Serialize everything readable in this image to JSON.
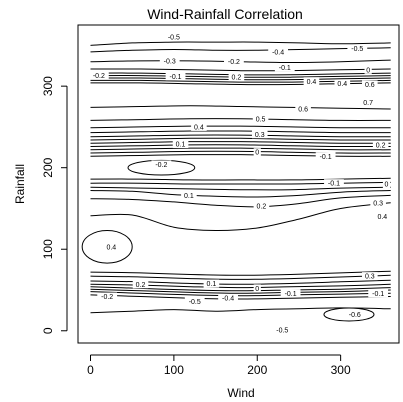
{
  "chart_data": {
    "type": "contour",
    "title": "Wind-Rainfall Correlation",
    "xlabel": "Wind",
    "ylabel": "Rainfall",
    "xlim": [
      -15,
      370
    ],
    "ylim": [
      -15,
      375
    ],
    "xticks": [
      0,
      100,
      200,
      300
    ],
    "yticks": [
      0,
      100,
      200,
      300
    ],
    "grid": false,
    "contours": [
      {
        "points": [
          [
            0,
            22
          ],
          [
            50,
            24
          ],
          [
            100,
            26
          ],
          [
            150,
            24
          ],
          [
            200,
            26
          ],
          [
            250,
            27
          ],
          [
            300,
            28
          ],
          [
            360,
            27
          ]
        ]
      },
      {
        "points": [
          [
            0,
            44
          ],
          [
            60,
            42
          ],
          [
            120,
            40
          ],
          [
            180,
            39
          ],
          [
            240,
            40
          ],
          [
            300,
            41
          ],
          [
            360,
            42
          ]
        ]
      },
      {
        "points": [
          [
            0,
            48
          ],
          [
            60,
            46
          ],
          [
            120,
            44
          ],
          [
            180,
            43
          ],
          [
            240,
            44
          ],
          [
            300,
            45
          ],
          [
            360,
            46
          ]
        ]
      },
      {
        "points": [
          [
            0,
            51
          ],
          [
            60,
            49
          ],
          [
            120,
            47
          ],
          [
            180,
            46
          ],
          [
            240,
            47
          ],
          [
            300,
            48
          ],
          [
            360,
            50
          ]
        ]
      },
      {
        "points": [
          [
            0,
            54
          ],
          [
            60,
            52
          ],
          [
            120,
            50
          ],
          [
            180,
            49
          ],
          [
            240,
            50
          ],
          [
            300,
            51
          ],
          [
            360,
            53
          ]
        ]
      },
      {
        "points": [
          [
            0,
            57
          ],
          [
            60,
            56
          ],
          [
            120,
            54
          ],
          [
            180,
            53
          ],
          [
            240,
            54
          ],
          [
            300,
            55
          ],
          [
            360,
            57
          ]
        ]
      },
      {
        "points": [
          [
            0,
            61
          ],
          [
            60,
            60
          ],
          [
            120,
            58
          ],
          [
            180,
            57
          ],
          [
            240,
            58
          ],
          [
            300,
            60
          ],
          [
            360,
            62
          ]
        ]
      },
      {
        "points": [
          [
            0,
            67
          ],
          [
            60,
            66
          ],
          [
            120,
            64
          ],
          [
            180,
            63
          ],
          [
            240,
            64
          ],
          [
            300,
            66
          ],
          [
            360,
            68
          ]
        ]
      },
      {
        "points": [
          [
            0,
            72
          ],
          [
            60,
            71
          ],
          [
            120,
            69
          ],
          [
            180,
            68
          ],
          [
            240,
            69
          ],
          [
            300,
            71
          ],
          [
            360,
            73
          ]
        ]
      },
      {
        "points": [
          [
            0,
            141
          ],
          [
            50,
            142
          ],
          [
            100,
            127
          ],
          [
            150,
            123
          ],
          [
            200,
            126
          ],
          [
            250,
            137
          ],
          [
            300,
            150
          ],
          [
            360,
            157
          ]
        ]
      },
      {
        "points": [
          [
            0,
            162
          ],
          [
            50,
            161
          ],
          [
            100,
            158
          ],
          [
            150,
            154
          ],
          [
            200,
            152
          ],
          [
            250,
            156
          ],
          [
            300,
            163
          ],
          [
            360,
            166
          ]
        ]
      },
      {
        "points": [
          [
            0,
            172
          ],
          [
            50,
            171
          ],
          [
            100,
            167
          ],
          [
            150,
            165
          ],
          [
            200,
            164
          ],
          [
            250,
            166
          ],
          [
            300,
            170
          ],
          [
            360,
            172
          ]
        ]
      },
      {
        "points": [
          [
            0,
            176
          ],
          [
            60,
            175
          ],
          [
            120,
            174
          ],
          [
            180,
            173
          ],
          [
            240,
            173
          ],
          [
            300,
            175
          ],
          [
            360,
            176
          ]
        ]
      },
      {
        "points": [
          [
            0,
            181
          ],
          [
            60,
            181
          ],
          [
            120,
            180
          ],
          [
            180,
            180
          ],
          [
            240,
            180
          ],
          [
            300,
            181
          ],
          [
            360,
            182
          ]
        ]
      },
      {
        "points": [
          [
            0,
            186
          ],
          [
            60,
            186
          ],
          [
            120,
            185
          ],
          [
            180,
            185
          ],
          [
            240,
            185
          ],
          [
            300,
            186
          ],
          [
            360,
            187
          ]
        ]
      },
      {
        "points": [
          [
            0,
            214
          ],
          [
            60,
            215
          ],
          [
            120,
            216
          ],
          [
            180,
            216
          ],
          [
            240,
            215
          ],
          [
            300,
            214
          ],
          [
            360,
            214
          ]
        ]
      },
      {
        "points": [
          [
            0,
            218
          ],
          [
            60,
            219
          ],
          [
            120,
            220
          ],
          [
            180,
            220
          ],
          [
            240,
            219
          ],
          [
            300,
            218
          ],
          [
            360,
            218
          ]
        ]
      },
      {
        "points": [
          [
            0,
            222
          ],
          [
            60,
            223
          ],
          [
            120,
            224
          ],
          [
            180,
            224
          ],
          [
            240,
            223
          ],
          [
            300,
            222
          ],
          [
            360,
            222
          ]
        ]
      },
      {
        "points": [
          [
            0,
            226
          ],
          [
            60,
            227
          ],
          [
            120,
            228
          ],
          [
            180,
            228
          ],
          [
            240,
            227
          ],
          [
            300,
            226
          ],
          [
            360,
            226
          ]
        ]
      },
      {
        "points": [
          [
            0,
            230
          ],
          [
            60,
            231
          ],
          [
            120,
            232
          ],
          [
            180,
            232
          ],
          [
            240,
            231
          ],
          [
            300,
            230
          ],
          [
            360,
            230
          ]
        ]
      },
      {
        "points": [
          [
            0,
            234
          ],
          [
            60,
            235
          ],
          [
            120,
            236
          ],
          [
            180,
            236
          ],
          [
            240,
            235
          ],
          [
            300,
            234
          ],
          [
            360,
            234
          ]
        ]
      },
      {
        "points": [
          [
            0,
            238
          ],
          [
            60,
            239
          ],
          [
            120,
            240
          ],
          [
            180,
            240
          ],
          [
            240,
            239
          ],
          [
            300,
            238
          ],
          [
            360,
            238
          ]
        ]
      },
      {
        "points": [
          [
            0,
            243
          ],
          [
            60,
            244
          ],
          [
            120,
            245
          ],
          [
            180,
            245
          ],
          [
            240,
            244
          ],
          [
            300,
            243
          ],
          [
            360,
            243
          ]
        ]
      },
      {
        "points": [
          [
            0,
            249
          ],
          [
            60,
            250
          ],
          [
            120,
            251
          ],
          [
            180,
            251
          ],
          [
            240,
            250
          ],
          [
            300,
            249
          ],
          [
            360,
            249
          ]
        ]
      },
      {
        "points": [
          [
            0,
            258
          ],
          [
            60,
            259
          ],
          [
            120,
            260
          ],
          [
            180,
            260
          ],
          [
            240,
            259
          ],
          [
            300,
            258
          ],
          [
            360,
            258
          ]
        ]
      },
      {
        "points": [
          [
            0,
            274
          ],
          [
            60,
            275
          ],
          [
            120,
            276
          ],
          [
            180,
            275
          ],
          [
            240,
            274
          ],
          [
            300,
            273
          ],
          [
            360,
            272
          ]
        ]
      },
      {
        "points": [
          [
            0,
            304
          ],
          [
            60,
            304
          ],
          [
            120,
            303
          ],
          [
            180,
            302
          ],
          [
            240,
            302
          ],
          [
            300,
            303
          ],
          [
            360,
            304
          ]
        ]
      },
      {
        "points": [
          [
            0,
            307
          ],
          [
            60,
            307
          ],
          [
            120,
            306
          ],
          [
            180,
            305
          ],
          [
            240,
            305
          ],
          [
            300,
            306
          ],
          [
            360,
            307
          ]
        ]
      },
      {
        "points": [
          [
            0,
            310
          ],
          [
            60,
            310
          ],
          [
            120,
            309
          ],
          [
            180,
            308
          ],
          [
            240,
            308
          ],
          [
            300,
            309
          ],
          [
            360,
            310
          ]
        ]
      },
      {
        "points": [
          [
            0,
            313
          ],
          [
            60,
            313
          ],
          [
            120,
            312
          ],
          [
            180,
            311
          ],
          [
            240,
            311
          ],
          [
            300,
            312
          ],
          [
            360,
            313
          ]
        ]
      },
      {
        "points": [
          [
            0,
            316
          ],
          [
            60,
            316
          ],
          [
            120,
            315
          ],
          [
            180,
            314
          ],
          [
            240,
            314
          ],
          [
            300,
            315
          ],
          [
            360,
            316
          ]
        ]
      },
      {
        "points": [
          [
            0,
            321
          ],
          [
            60,
            321
          ],
          [
            120,
            320
          ],
          [
            180,
            319
          ],
          [
            240,
            319
          ],
          [
            300,
            320
          ],
          [
            360,
            321
          ]
        ]
      },
      {
        "points": [
          [
            0,
            330
          ],
          [
            60,
            331
          ],
          [
            120,
            331
          ],
          [
            180,
            330
          ],
          [
            240,
            329
          ],
          [
            300,
            330
          ],
          [
            360,
            332
          ]
        ]
      },
      {
        "points": [
          [
            0,
            342
          ],
          [
            50,
            344
          ],
          [
            100,
            345
          ],
          [
            150,
            344
          ],
          [
            200,
            344
          ],
          [
            250,
            345
          ],
          [
            300,
            346
          ],
          [
            360,
            347
          ]
        ]
      },
      {
        "points": [
          [
            0,
            350
          ],
          [
            50,
            353
          ],
          [
            100,
            354
          ],
          [
            150,
            354
          ],
          [
            200,
            354
          ],
          [
            250,
            353
          ],
          [
            300,
            352
          ],
          [
            360,
            353
          ]
        ]
      }
    ],
    "closed_contours": [
      {
        "cx": 85,
        "cy": 200,
        "rx": 40,
        "ry": 9
      },
      {
        "cx": 20,
        "cy": 103,
        "rx": 30,
        "ry": 20
      },
      {
        "cx": 310,
        "cy": 20,
        "rx": 30,
        "ry": 8
      }
    ],
    "contour_labels": [
      {
        "x": 100,
        "y": 360,
        "text": "-0.5"
      },
      {
        "x": 225,
        "y": 342,
        "text": "-0.4"
      },
      {
        "x": 320,
        "y": 346,
        "text": "-0.5"
      },
      {
        "x": 95,
        "y": 331,
        "text": "-0.3"
      },
      {
        "x": 172,
        "y": 330,
        "text": "-0.2"
      },
      {
        "x": 233,
        "y": 323,
        "text": "-0.1"
      },
      {
        "x": 333,
        "y": 320,
        "text": "0"
      },
      {
        "x": 10,
        "y": 313,
        "text": "-0.2"
      },
      {
        "x": 102,
        "y": 312,
        "text": "-0.1"
      },
      {
        "x": 175,
        "y": 311,
        "text": "0.2"
      },
      {
        "x": 265,
        "y": 306,
        "text": "0.4"
      },
      {
        "x": 302,
        "y": 303,
        "text": "0.4"
      },
      {
        "x": 335,
        "y": 302,
        "text": "0.6"
      },
      {
        "x": 333,
        "y": 280,
        "text": "0.7"
      },
      {
        "x": 255,
        "y": 272,
        "text": "0.6"
      },
      {
        "x": 204,
        "y": 260,
        "text": "0.5"
      },
      {
        "x": 130,
        "y": 250,
        "text": "0.4"
      },
      {
        "x": 203,
        "y": 241,
        "text": "0.3"
      },
      {
        "x": 108,
        "y": 229,
        "text": "0.1"
      },
      {
        "x": 200,
        "y": 219,
        "text": "0"
      },
      {
        "x": 282,
        "y": 214,
        "text": "-0.1"
      },
      {
        "x": 348,
        "y": 228,
        "text": "0.2"
      },
      {
        "x": 85,
        "y": 204,
        "text": "-0.2"
      },
      {
        "x": 292,
        "y": 181,
        "text": "-0.1"
      },
      {
        "x": 355,
        "y": 180,
        "text": "0"
      },
      {
        "x": 118,
        "y": 166,
        "text": "0.1"
      },
      {
        "x": 205,
        "y": 153,
        "text": "0.2"
      },
      {
        "x": 345,
        "y": 157,
        "text": "0.3"
      },
      {
        "x": 350,
        "y": 140,
        "text": "0.4"
      },
      {
        "x": 25,
        "y": 103,
        "text": "0.4"
      },
      {
        "x": 335,
        "y": 67,
        "text": "0.3"
      },
      {
        "x": 60,
        "y": 57,
        "text": "0.2"
      },
      {
        "x": 145,
        "y": 58,
        "text": "0.1"
      },
      {
        "x": 200,
        "y": 52,
        "text": "0"
      },
      {
        "x": 345,
        "y": 46,
        "text": "-0.1"
      },
      {
        "x": 20,
        "y": 42,
        "text": "-0.2"
      },
      {
        "x": 125,
        "y": 36,
        "text": "-0.5"
      },
      {
        "x": 165,
        "y": 40,
        "text": "-0.4"
      },
      {
        "x": 240,
        "y": 46,
        "text": "-0.1"
      },
      {
        "x": 317,
        "y": 20,
        "text": "-0.6"
      },
      {
        "x": 230,
        "y": 1,
        "text": "-0.5"
      }
    ]
  }
}
